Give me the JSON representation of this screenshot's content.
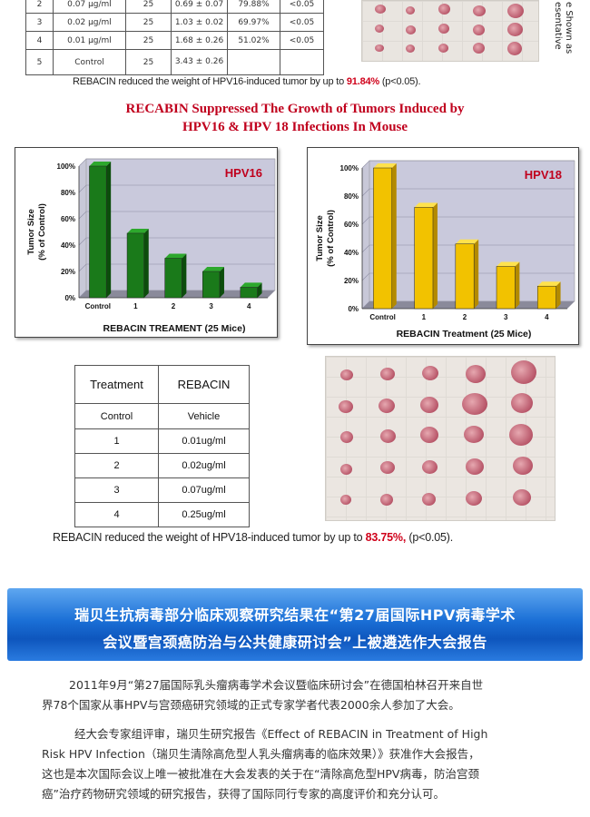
{
  "top_table": {
    "rows": [
      {
        "no": "2",
        "dose": "0.07 μg/ml",
        "mice": "25",
        "weight": "0.69 ± 0.07",
        "inhibit": "79.88%",
        "p": "<0.05"
      },
      {
        "no": "3",
        "dose": "0.02 μg/ml",
        "mice": "25",
        "weight": "1.03 ± 0.02",
        "inhibit": "69.97%",
        "p": "<0.05"
      },
      {
        "no": "4",
        "dose": "0.01 μg/ml",
        "mice": "25",
        "weight": "1.68 ± 0.26",
        "inhibit": "51.02%",
        "p": "<0.05"
      },
      {
        "no": "5",
        "dose": "Control",
        "mice": "25",
        "weight": "3.43 ± 0.26",
        "inhibit": "",
        "p": ""
      }
    ],
    "rotated_note": "e Shown as esentative"
  },
  "caption1": {
    "text": "REBACIN reduced the weight of HPV16-induced tumor by up to ",
    "highlight": "91.84%",
    "tail": " (p<0.05)."
  },
  "heading": {
    "line1": "RECABIN Suppressed The Growth of Tumors Induced by",
    "line2": "HPV16 & HPV 18 Infections In Mouse"
  },
  "chart_data": [
    {
      "type": "bar",
      "title": "HPV16",
      "categories": [
        "Control",
        "1",
        "2",
        "3",
        "4"
      ],
      "values": [
        100,
        49,
        30,
        20,
        8
      ],
      "ylabel": "Tumor Size (% of Control)",
      "ylabel_line1": "Tumor Size",
      "ylabel_line2": "(% of Control)",
      "xlabel": "REBACIN TREAMENT (25 Mice)",
      "ylim": [
        0,
        100
      ],
      "yticks": [
        "0%",
        "20%",
        "40%",
        "60%",
        "80%",
        "100%"
      ],
      "bar_color": "#1a7a1a",
      "top_color": "#2da82d",
      "side_color": "#0c4d0c",
      "title_color": "#c0001d"
    },
    {
      "type": "bar",
      "title": "HPV18",
      "categories": [
        "Control",
        "1",
        "2",
        "3",
        "4"
      ],
      "values": [
        100,
        72,
        46,
        30,
        16
      ],
      "ylabel": "Tumor Size (% of Control)",
      "ylabel_line1": "Tumor Size",
      "ylabel_line2": "(% of Control)",
      "xlabel": "REBACIN Treatment (25 Mice)",
      "ylim": [
        0,
        100
      ],
      "yticks": [
        "0%",
        "20%",
        "40%",
        "60%",
        "80%",
        "100%"
      ],
      "bar_color": "#f2c200",
      "top_color": "#ffe24d",
      "side_color": "#b38a00",
      "title_color": "#c0001d"
    }
  ],
  "treatment_table": {
    "header": [
      "Treatment",
      "REBACIN"
    ],
    "rows": [
      [
        "Control",
        "Vehicle"
      ],
      [
        "1",
        "0.01ug/ml"
      ],
      [
        "2",
        "0.02ug/ml"
      ],
      [
        "3",
        "0.07ug/ml"
      ],
      [
        "4",
        "0.25ug/ml"
      ]
    ]
  },
  "caption2": {
    "text": "REBACIN reduced the weight of HPV18-induced tumor by up to ",
    "highlight": "83.75%,",
    "tail": " (p<0.05)."
  },
  "banner": {
    "line1": "瑞贝生抗病毒部分临床观察研究结果在“第27届国际HPV病毒学术",
    "line2": "会议暨宫颈癌防治与公共健康研讨会”上被遴选作大会报告"
  },
  "paragraphs": {
    "p1_line1": "2011年9月“第27届国际乳头瘤病毒学术会议暨临床研讨会”在德国柏林召开来自世",
    "p1_line2": "界78个国家从事HPV与宫颈癌研究领域的正式专家学者代表2000余人参加了大会。",
    "p2_line1": "经大会专家组评审，瑞贝生研究报告《Effect of REBACIN in Treatment of High",
    "p2_line2": "Risk HPV Infection（瑞贝生清除高危型人乳头瘤病毒的临床效果）》获准作大会报告，",
    "p2_line3": "这也是本次国际会议上唯一被批准在大会发表的关于在“清除高危型HPV病毒，防治宫颈",
    "p2_line4": "癌”治疗药物研究领域的研究报告，获得了国际同行专家的高度评价和充分认可。"
  }
}
